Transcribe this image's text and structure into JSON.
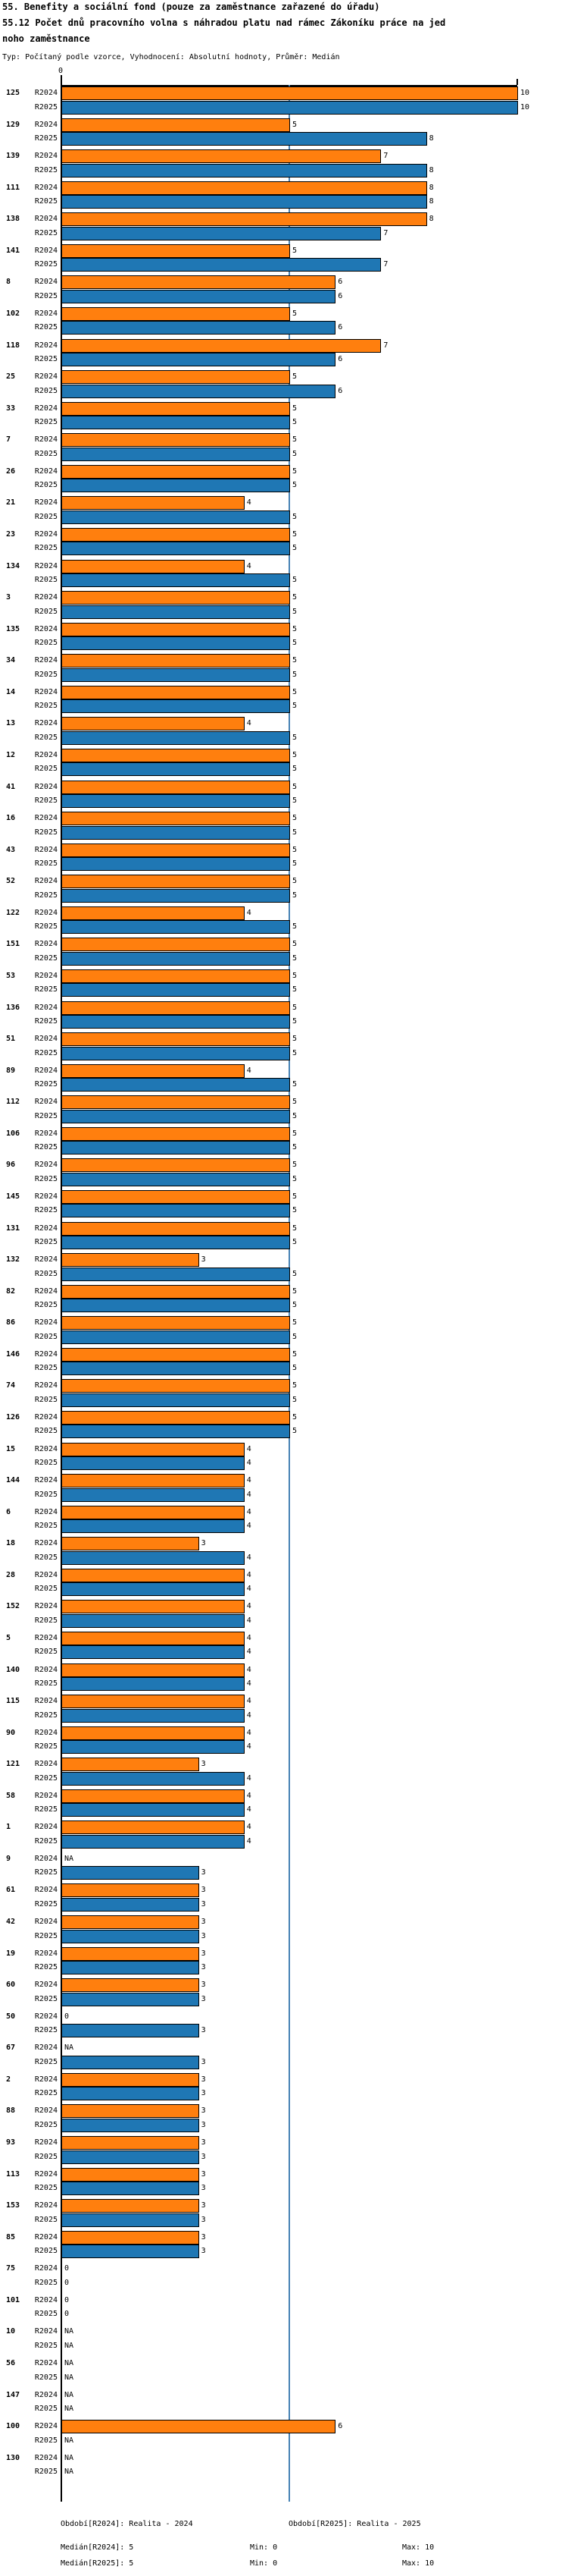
{
  "title": {
    "line1": "55. Benefity a sociální fond (pouze za zaměstnance zařazené do úřadu)",
    "line2": "55.12 Počet dnů pracovního volna s náhradou platu nad rámec Zákoníku práce na jed",
    "line3": "noho zaměstnance",
    "meta": "Typ: Počítaný podle vzorce, Vyhodnocení: Absolutní hodnoty, Průměr: Medián"
  },
  "chart_data": {
    "type": "bar",
    "orientation": "horizontal",
    "title": "55.12 Počet dnů pracovního volna s náhradou platu nad rámec Zákoníku práce na jednoho zaměstnance",
    "series": [
      "R2024",
      "R2025"
    ],
    "colors": {
      "R2024": "#ff7f0e",
      "R2025": "#1f77b4",
      "median_line": "#4682b4"
    },
    "x_axis": {
      "min": 0,
      "max": 10,
      "tick_labels": [
        "0"
      ],
      "median_line_value": 5
    },
    "legend_position": "bottom",
    "grid": false,
    "rows": [
      {
        "id": "125",
        "R2024": "10",
        "R2025": "10"
      },
      {
        "id": "129",
        "R2024": "5",
        "R2025": "8"
      },
      {
        "id": "139",
        "R2024": "7",
        "R2025": "8"
      },
      {
        "id": "111",
        "R2024": "8",
        "R2025": "8"
      },
      {
        "id": "138",
        "R2024": "8",
        "R2025": "7"
      },
      {
        "id": "141",
        "R2024": "5",
        "R2025": "7"
      },
      {
        "id": "8",
        "R2024": "6",
        "R2025": "6"
      },
      {
        "id": "102",
        "R2024": "5",
        "R2025": "6"
      },
      {
        "id": "118",
        "R2024": "7",
        "R2025": "6"
      },
      {
        "id": "25",
        "R2024": "5",
        "R2025": "6"
      },
      {
        "id": "33",
        "R2024": "5",
        "R2025": "5"
      },
      {
        "id": "7",
        "R2024": "5",
        "R2025": "5"
      },
      {
        "id": "26",
        "R2024": "5",
        "R2025": "5"
      },
      {
        "id": "21",
        "R2024": "4",
        "R2025": "5"
      },
      {
        "id": "23",
        "R2024": "5",
        "R2025": "5"
      },
      {
        "id": "134",
        "R2024": "4",
        "R2025": "5"
      },
      {
        "id": "3",
        "R2024": "5",
        "R2025": "5"
      },
      {
        "id": "135",
        "R2024": "5",
        "R2025": "5"
      },
      {
        "id": "34",
        "R2024": "5",
        "R2025": "5"
      },
      {
        "id": "14",
        "R2024": "5",
        "R2025": "5"
      },
      {
        "id": "13",
        "R2024": "4",
        "R2025": "5"
      },
      {
        "id": "12",
        "R2024": "5",
        "R2025": "5"
      },
      {
        "id": "41",
        "R2024": "5",
        "R2025": "5"
      },
      {
        "id": "16",
        "R2024": "5",
        "R2025": "5"
      },
      {
        "id": "43",
        "R2024": "5",
        "R2025": "5"
      },
      {
        "id": "52",
        "R2024": "5",
        "R2025": "5"
      },
      {
        "id": "122",
        "R2024": "4",
        "R2025": "5"
      },
      {
        "id": "151",
        "R2024": "5",
        "R2025": "5"
      },
      {
        "id": "53",
        "R2024": "5",
        "R2025": "5"
      },
      {
        "id": "136",
        "R2024": "5",
        "R2025": "5"
      },
      {
        "id": "51",
        "R2024": "5",
        "R2025": "5"
      },
      {
        "id": "89",
        "R2024": "4",
        "R2025": "5"
      },
      {
        "id": "112",
        "R2024": "5",
        "R2025": "5"
      },
      {
        "id": "106",
        "R2024": "5",
        "R2025": "5"
      },
      {
        "id": "96",
        "R2024": "5",
        "R2025": "5"
      },
      {
        "id": "145",
        "R2024": "5",
        "R2025": "5"
      },
      {
        "id": "131",
        "R2024": "5",
        "R2025": "5"
      },
      {
        "id": "132",
        "R2024": "3",
        "R2025": "5"
      },
      {
        "id": "82",
        "R2024": "5",
        "R2025": "5"
      },
      {
        "id": "86",
        "R2024": "5",
        "R2025": "5"
      },
      {
        "id": "146",
        "R2024": "5",
        "R2025": "5"
      },
      {
        "id": "74",
        "R2024": "5",
        "R2025": "5"
      },
      {
        "id": "126",
        "R2024": "5",
        "R2025": "5"
      },
      {
        "id": "15",
        "R2024": "4",
        "R2025": "4"
      },
      {
        "id": "144",
        "R2024": "4",
        "R2025": "4"
      },
      {
        "id": "6",
        "R2024": "4",
        "R2025": "4"
      },
      {
        "id": "18",
        "R2024": "3",
        "R2025": "4"
      },
      {
        "id": "28",
        "R2024": "4",
        "R2025": "4"
      },
      {
        "id": "152",
        "R2024": "4",
        "R2025": "4"
      },
      {
        "id": "5",
        "R2024": "4",
        "R2025": "4"
      },
      {
        "id": "140",
        "R2024": "4",
        "R2025": "4"
      },
      {
        "id": "115",
        "R2024": "4",
        "R2025": "4"
      },
      {
        "id": "90",
        "R2024": "4",
        "R2025": "4"
      },
      {
        "id": "121",
        "R2024": "3",
        "R2025": "4"
      },
      {
        "id": "58",
        "R2024": "4",
        "R2025": "4"
      },
      {
        "id": "1",
        "R2024": "4",
        "R2025": "4"
      },
      {
        "id": "9",
        "R2024": "NA",
        "R2025": "3"
      },
      {
        "id": "61",
        "R2024": "3",
        "R2025": "3"
      },
      {
        "id": "42",
        "R2024": "3",
        "R2025": "3"
      },
      {
        "id": "19",
        "R2024": "3",
        "R2025": "3"
      },
      {
        "id": "60",
        "R2024": "3",
        "R2025": "3"
      },
      {
        "id": "50",
        "R2024": "0",
        "R2025": "3"
      },
      {
        "id": "67",
        "R2024": "NA",
        "R2025": "3"
      },
      {
        "id": "2",
        "R2024": "3",
        "R2025": "3"
      },
      {
        "id": "88",
        "R2024": "3",
        "R2025": "3"
      },
      {
        "id": "93",
        "R2024": "3",
        "R2025": "3"
      },
      {
        "id": "113",
        "R2024": "3",
        "R2025": "3"
      },
      {
        "id": "153",
        "R2024": "3",
        "R2025": "3"
      },
      {
        "id": "85",
        "R2024": "3",
        "R2025": "3"
      },
      {
        "id": "75",
        "R2024": "0",
        "R2025": "0"
      },
      {
        "id": "101",
        "R2024": "0",
        "R2025": "0"
      },
      {
        "id": "10",
        "R2024": "NA",
        "R2025": "NA"
      },
      {
        "id": "56",
        "R2024": "NA",
        "R2025": "NA"
      },
      {
        "id": "147",
        "R2024": "NA",
        "R2025": "NA"
      },
      {
        "id": "100",
        "R2024": "6",
        "R2025": "NA"
      },
      {
        "id": "130",
        "R2024": "NA",
        "R2025": "NA"
      }
    ]
  },
  "axis": {
    "zero_label": "0"
  },
  "footer": {
    "period_r2024": "Období[R2024]: Realita - 2024",
    "period_r2025": "Období[R2025]: Realita - 2025",
    "median_r2024": "Medián[R2024]: 5",
    "min_r2024": "Min: 0",
    "max_r2024": "Max: 10",
    "median_r2025": "Medián[R2025]: 5",
    "min_r2025": "Min: 0",
    "max_r2025": "Max: 10"
  }
}
